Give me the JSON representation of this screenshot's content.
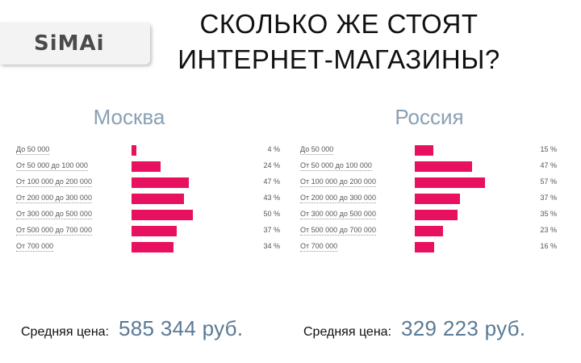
{
  "logo": {
    "text": "SiMAi"
  },
  "title": {
    "line1": "СКОЛЬКО ЖЕ СТОЯТ",
    "line2": "ИНТЕРНЕТ-МАГАЗИНЫ?"
  },
  "colors": {
    "bar": "#e8115f",
    "region_text": "#8aa0b4",
    "value_text": "#5a7a96"
  },
  "chart_data": [
    {
      "type": "bar",
      "orientation": "horizontal",
      "title": "Москва",
      "categories": [
        "До 50 000",
        "От 50 000 до 100 000",
        "От 100 000 до 200 000",
        "От 200 000 до 300 000",
        "От 300 000 до 500 000",
        "От 500 000 до 700 000",
        "От 700 000"
      ],
      "values": [
        4,
        24,
        47,
        43,
        50,
        37,
        34
      ],
      "value_labels": [
        "4 %",
        "24 %",
        "47 %",
        "43 %",
        "50 %",
        "37 %",
        "34 %"
      ],
      "xlim": [
        0,
        100
      ]
    },
    {
      "type": "bar",
      "orientation": "horizontal",
      "title": "Россия",
      "categories": [
        "До 50 000",
        "От 50 000 до 100 000",
        "От 100 000 до 200 000",
        "От 200 000 до 300 000",
        "От 300 000 до 500 000",
        "От 500 000 до 700 000",
        "От 700 000"
      ],
      "values": [
        15,
        47,
        57,
        37,
        35,
        23,
        16
      ],
      "value_labels": [
        "15 %",
        "47 %",
        "57 %",
        "37 %",
        "35 %",
        "23 %",
        "16 %"
      ],
      "xlim": [
        0,
        100
      ]
    }
  ],
  "averages": [
    {
      "label": "Средняя цена:",
      "value": "585 344 руб."
    },
    {
      "label": "Средняя цена:",
      "value": "329 223 руб."
    }
  ]
}
